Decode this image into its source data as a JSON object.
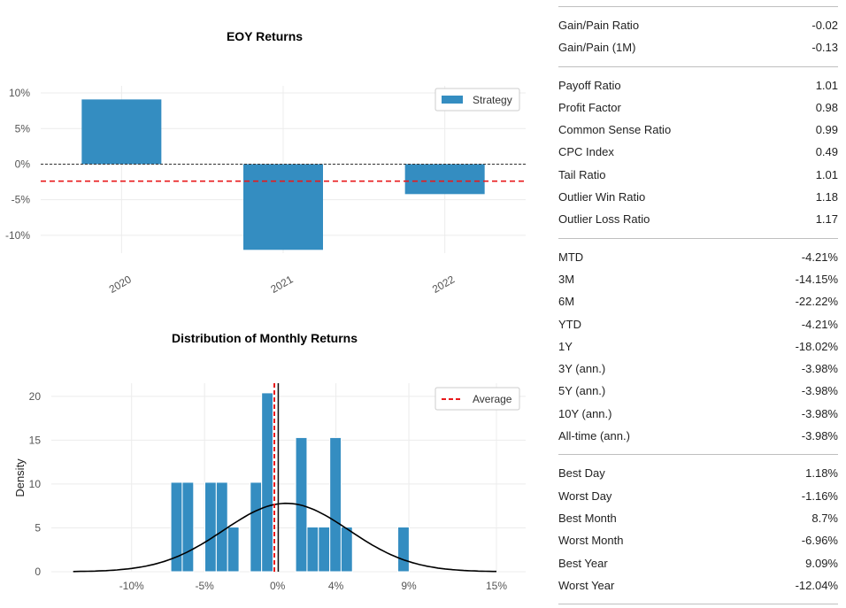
{
  "chart_data": [
    {
      "type": "bar",
      "title": "EOY Returns",
      "categories": [
        "2020",
        "2021",
        "2022"
      ],
      "series": [
        {
          "name": "Strategy",
          "values": [
            9.09,
            -12.04,
            -4.21
          ]
        }
      ],
      "ylim": [
        -12.5,
        11
      ],
      "yticks": [
        10,
        5,
        0,
        -5,
        -10
      ],
      "ytick_labels": [
        "10%",
        "5%",
        "0%",
        "-5%",
        "-10%"
      ],
      "reference_lines": [
        {
          "value": 0,
          "style": "dashed",
          "color": "#333333"
        },
        {
          "value": -2.39,
          "style": "dashed",
          "color": "#e8191b"
        }
      ],
      "legend": "top-right",
      "color": "#348dc1",
      "avg_color": "#e8191b"
    },
    {
      "type": "bar",
      "title": "Distribution of Monthly Returns",
      "subtype": "histogram",
      "ylabel": "Density",
      "xlim": [
        -15.5,
        17
      ],
      "ylim": [
        0,
        21.5
      ],
      "xticks": [
        -10,
        -5,
        0,
        4,
        9,
        15
      ],
      "xtick_labels": [
        "-10%",
        "-5%",
        "0%",
        "4%",
        "9%",
        "15%"
      ],
      "yticks": [
        0,
        5,
        10,
        15,
        20
      ],
      "ytick_labels": [
        "0",
        "5",
        "10",
        "15",
        "20"
      ],
      "bins": [
        {
          "x": -6.92,
          "density": 10.2
        },
        {
          "x": -6.14,
          "density": 10.2
        },
        {
          "x": -4.59,
          "density": 10.2
        },
        {
          "x": -3.81,
          "density": 10.2
        },
        {
          "x": -3.03,
          "density": 5.1
        },
        {
          "x": -1.48,
          "density": 10.2
        },
        {
          "x": -0.7,
          "density": 20.4
        },
        {
          "x": 1.63,
          "density": 15.3
        },
        {
          "x": 2.41,
          "density": 5.1
        },
        {
          "x": 3.19,
          "density": 5.1
        },
        {
          "x": 3.97,
          "density": 15.3
        },
        {
          "x": 4.74,
          "density": 5.1
        },
        {
          "x": 8.63,
          "density": 5.1
        }
      ],
      "bin_width": 0.78,
      "kde": {
        "mean": 0.6,
        "sd": 4.3,
        "peak": 7.8
      },
      "average_line": {
        "name": "Average",
        "value": -0.22
      },
      "median_line": {
        "value": 0.05
      },
      "legend": "top-right",
      "color": "#348dc1",
      "avg_color": "#e8191b"
    }
  ],
  "metrics": [
    [
      {
        "label": "Gain/Pain Ratio",
        "value": "-0.02"
      },
      {
        "label": "Gain/Pain (1M)",
        "value": "-0.13"
      }
    ],
    [
      {
        "label": "Payoff Ratio",
        "value": "1.01"
      },
      {
        "label": "Profit Factor",
        "value": "0.98"
      },
      {
        "label": "Common Sense Ratio",
        "value": "0.99"
      },
      {
        "label": "CPC Index",
        "value": "0.49"
      },
      {
        "label": "Tail Ratio",
        "value": "1.01"
      },
      {
        "label": "Outlier Win Ratio",
        "value": "1.18"
      },
      {
        "label": "Outlier Loss Ratio",
        "value": "1.17"
      }
    ],
    [
      {
        "label": "MTD",
        "value": "-4.21%"
      },
      {
        "label": "3M",
        "value": "-14.15%"
      },
      {
        "label": "6M",
        "value": "-22.22%"
      },
      {
        "label": "YTD",
        "value": "-4.21%"
      },
      {
        "label": "1Y",
        "value": "-18.02%"
      },
      {
        "label": "3Y (ann.)",
        "value": "-3.98%"
      },
      {
        "label": "5Y (ann.)",
        "value": "-3.98%"
      },
      {
        "label": "10Y (ann.)",
        "value": "-3.98%"
      },
      {
        "label": "All-time (ann.)",
        "value": "-3.98%"
      }
    ],
    [
      {
        "label": "Best Day",
        "value": "1.18%"
      },
      {
        "label": "Worst Day",
        "value": "-1.16%"
      },
      {
        "label": "Best Month",
        "value": "8.7%"
      },
      {
        "label": "Worst Month",
        "value": "-6.96%"
      },
      {
        "label": "Best Year",
        "value": "9.09%"
      },
      {
        "label": "Worst Year",
        "value": "-12.04%"
      }
    ]
  ]
}
